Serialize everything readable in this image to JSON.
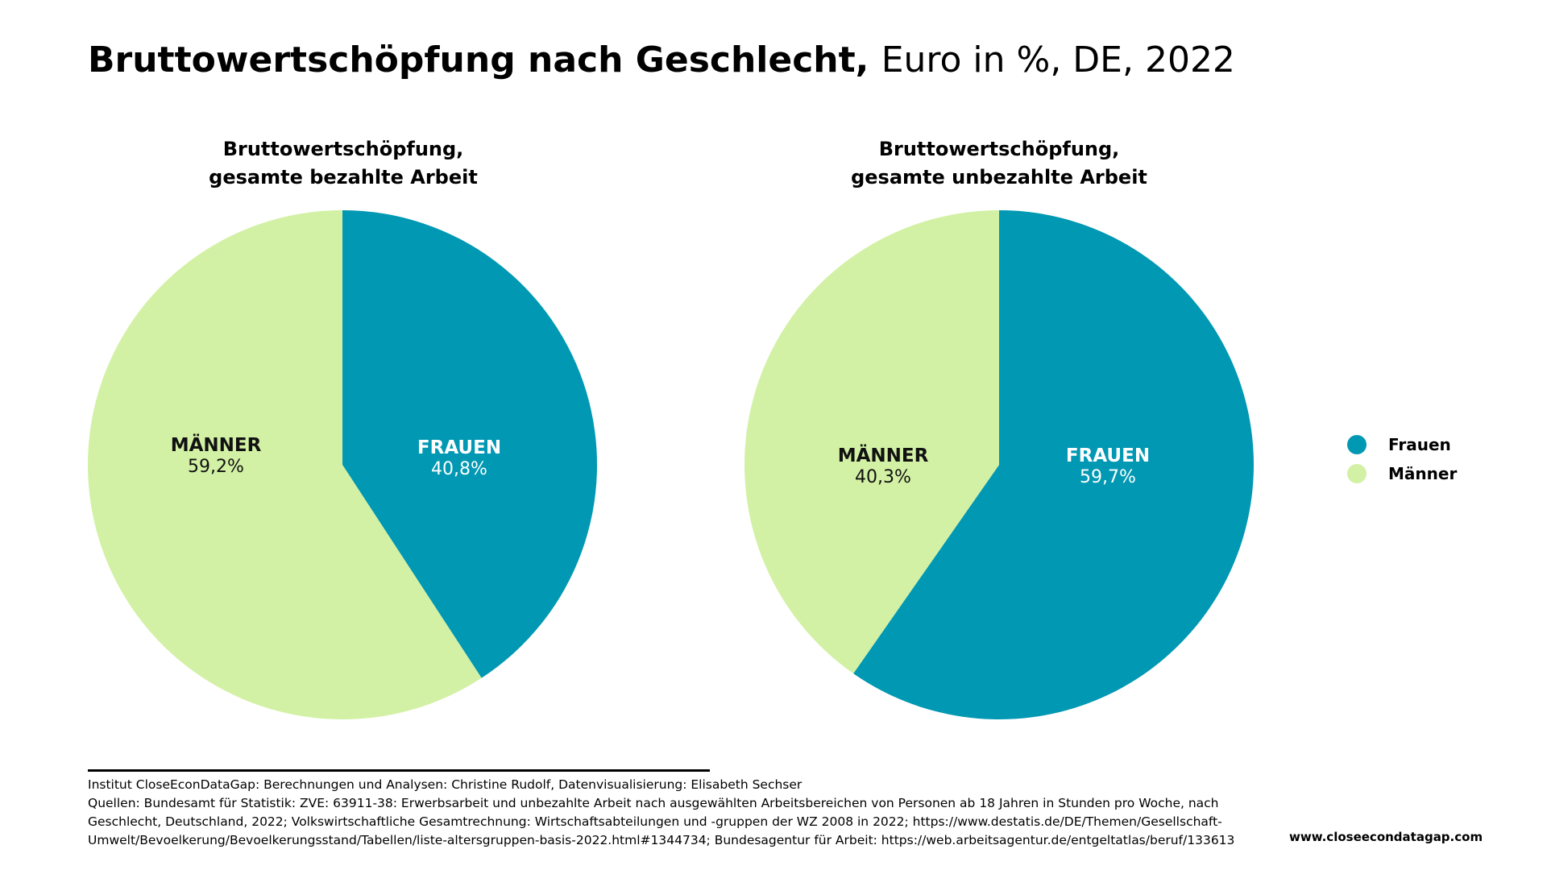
{
  "header": {
    "title_bold": "Bruttowertschöpfung nach Geschlecht,",
    "title_rest": "Euro in %, DE, 2022"
  },
  "colors": {
    "frauen": "#0098B3",
    "maenner": "#D2F1A5"
  },
  "chart_data": [
    {
      "type": "pie",
      "title_lines": [
        "Bruttowertschöpfung,",
        "gesamte bezahlte Arbeit"
      ],
      "slices": [
        {
          "key": "frauen",
          "label": "FRAUEN",
          "value": 40.8,
          "value_label": "40,8%"
        },
        {
          "key": "maenner",
          "label": "MÄNNER",
          "value": 59.2,
          "value_label": "59,2%"
        }
      ]
    },
    {
      "type": "pie",
      "title_lines": [
        "Bruttowertschöpfung,",
        "gesamte unbezahlte Arbeit"
      ],
      "slices": [
        {
          "key": "frauen",
          "label": "FRAUEN",
          "value": 59.7,
          "value_label": "59,7%"
        },
        {
          "key": "maenner",
          "label": "MÄNNER",
          "value": 40.3,
          "value_label": "40,3%"
        }
      ]
    }
  ],
  "legend": [
    {
      "key": "frauen",
      "label": "Frauen"
    },
    {
      "key": "maenner",
      "label": "Männer"
    }
  ],
  "footer": {
    "lines": [
      "Institut CloseEconDataGap: Berechnungen und Analysen: Christine Rudolf, Datenvisualisierung: Elisabeth Sechser",
      "Quellen: Bundesamt für Statistik: ZVE: 63911-38: Erwerbsarbeit und unbezahlte Arbeit nach ausgewählten Arbeitsbereichen von Personen ab 18 Jahren in Stunden pro Woche, nach",
      "Geschlecht, Deutschland, 2022; Volkswirtschaftliche Gesamtrechnung: Wirtschaftsabteilungen und -gruppen der WZ 2008 in 2022; https://www.destatis.de/DE/Themen/Gesellschaft-",
      "Umwelt/Bevoelkerung/Bevoelkerungsstand/Tabellen/liste-altersgruppen-basis-2022.html#1344734; Bundesagentur für Arbeit: https://web.arbeitsagentur.de/entgeltatlas/beruf/133613"
    ],
    "website": "www.closeecondatagap.com"
  }
}
